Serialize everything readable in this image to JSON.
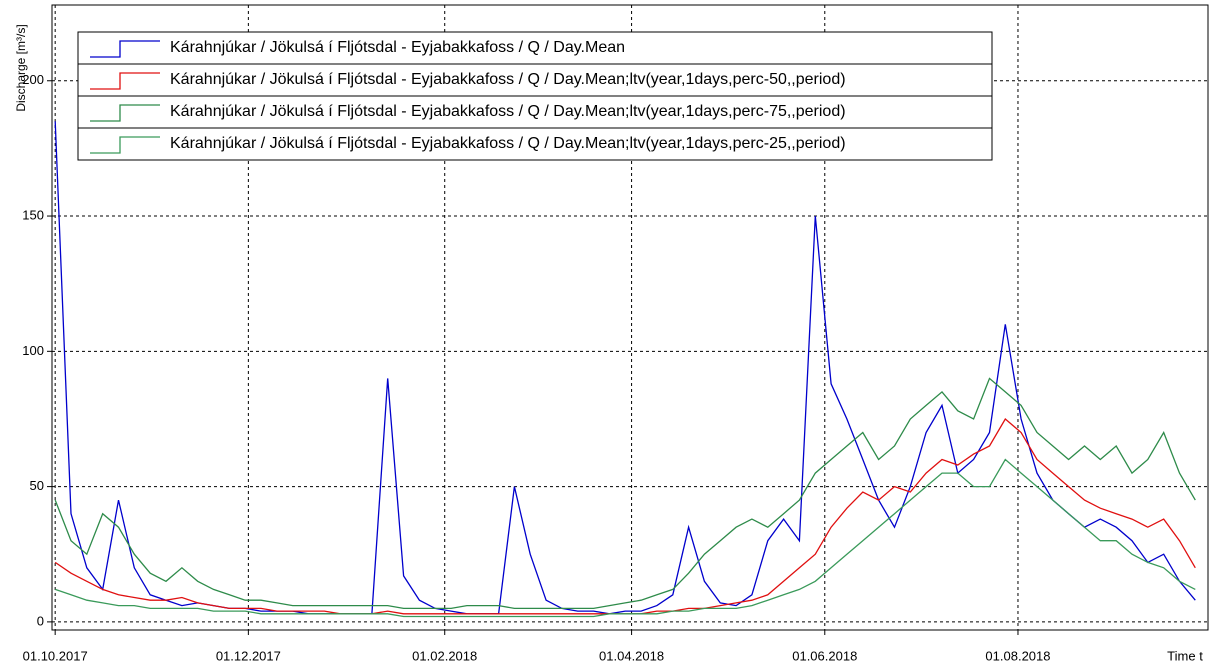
{
  "chart_data": {
    "type": "line",
    "xlabel": "Time t",
    "ylabel": "Discharge [m³/s]",
    "x": [
      "2017-10-01",
      "2017-10-06",
      "2017-10-11",
      "2017-10-16",
      "2017-10-21",
      "2017-10-26",
      "2017-10-31",
      "2017-11-05",
      "2017-11-10",
      "2017-11-15",
      "2017-11-20",
      "2017-11-25",
      "2017-11-30",
      "2017-12-05",
      "2017-12-10",
      "2017-12-15",
      "2017-12-20",
      "2017-12-25",
      "2017-12-30",
      "2018-01-04",
      "2018-01-09",
      "2018-01-14",
      "2018-01-19",
      "2018-01-24",
      "2018-01-29",
      "2018-02-03",
      "2018-02-08",
      "2018-02-13",
      "2018-02-18",
      "2018-02-23",
      "2018-02-28",
      "2018-03-05",
      "2018-03-10",
      "2018-03-15",
      "2018-03-20",
      "2018-03-25",
      "2018-03-30",
      "2018-04-04",
      "2018-04-09",
      "2018-04-14",
      "2018-04-19",
      "2018-04-24",
      "2018-04-29",
      "2018-05-04",
      "2018-05-09",
      "2018-05-14",
      "2018-05-19",
      "2018-05-24",
      "2018-05-29",
      "2018-06-03",
      "2018-06-08",
      "2018-06-13",
      "2018-06-18",
      "2018-06-23",
      "2018-06-28",
      "2018-07-03",
      "2018-07-08",
      "2018-07-13",
      "2018-07-18",
      "2018-07-23",
      "2018-07-28",
      "2018-08-02",
      "2018-08-07",
      "2018-08-12",
      "2018-08-17",
      "2018-08-22",
      "2018-08-27",
      "2018-09-01",
      "2018-09-06",
      "2018-09-11",
      "2018-09-16",
      "2018-09-21",
      "2018-09-26"
    ],
    "series": [
      {
        "name": "Kárahnjúkar / Jökulsá í Fljótsdal - Eyjabakkafoss / Q / Day.Mean",
        "color": "#0000cc",
        "values": [
          185,
          40,
          20,
          12,
          45,
          20,
          10,
          8,
          6,
          7,
          6,
          5,
          5,
          4,
          4,
          4,
          3,
          3,
          3,
          3,
          3,
          90,
          17,
          8,
          5,
          4,
          3,
          3,
          3,
          50,
          25,
          8,
          5,
          4,
          4,
          3,
          4,
          4,
          6,
          10,
          35,
          15,
          7,
          6,
          10,
          30,
          38,
          30,
          150,
          88,
          75,
          60,
          45,
          35,
          50,
          70,
          80,
          55,
          60,
          70,
          110,
          75,
          55,
          45,
          40,
          35,
          38,
          35,
          30,
          22,
          25,
          15,
          8
        ]
      },
      {
        "name": "Kárahnjúkar / Jökulsá í Fljótsdal - Eyjabakkafoss / Q / Day.Mean;ltv(year,1days,perc-50,,period)",
        "color": "#e01010",
        "values": [
          22,
          18,
          15,
          12,
          10,
          9,
          8,
          8,
          9,
          7,
          6,
          5,
          5,
          5,
          4,
          4,
          4,
          4,
          3,
          3,
          3,
          4,
          3,
          3,
          3,
          3,
          3,
          3,
          3,
          3,
          3,
          3,
          3,
          3,
          3,
          3,
          3,
          3,
          4,
          4,
          5,
          5,
          6,
          7,
          8,
          10,
          15,
          20,
          25,
          35,
          42,
          48,
          45,
          50,
          48,
          55,
          60,
          58,
          62,
          65,
          75,
          70,
          60,
          55,
          50,
          45,
          42,
          40,
          38,
          35,
          38,
          30,
          20
        ]
      },
      {
        "name": "Kárahnjúkar / Jökulsá í Fljótsdal - Eyjabakkafoss / Q / Day.Mean;ltv(year,1days,perc-75,,period)",
        "color": "#2e8b4a",
        "values": [
          45,
          30,
          25,
          40,
          35,
          25,
          18,
          15,
          20,
          15,
          12,
          10,
          8,
          8,
          7,
          6,
          6,
          6,
          6,
          6,
          6,
          6,
          5,
          5,
          5,
          5,
          6,
          6,
          6,
          5,
          5,
          5,
          5,
          5,
          5,
          6,
          7,
          8,
          10,
          12,
          18,
          25,
          30,
          35,
          38,
          35,
          40,
          45,
          55,
          60,
          65,
          70,
          60,
          65,
          75,
          80,
          85,
          78,
          75,
          90,
          85,
          80,
          70,
          65,
          60,
          65,
          60,
          65,
          55,
          60,
          70,
          55,
          45
        ]
      },
      {
        "name": "Kárahnjúkar / Jökulsá í Fljótsdal - Eyjabakkafoss / Q / Day.Mean;ltv(year,1days,perc-25,,period)",
        "color": "#3a9a5a",
        "values": [
          12,
          10,
          8,
          7,
          6,
          6,
          5,
          5,
          5,
          5,
          4,
          4,
          4,
          3,
          3,
          3,
          3,
          3,
          3,
          3,
          3,
          3,
          2,
          2,
          2,
          2,
          2,
          2,
          2,
          2,
          2,
          2,
          2,
          2,
          2,
          3,
          3,
          3,
          3,
          4,
          4,
          5,
          5,
          5,
          6,
          8,
          10,
          12,
          15,
          20,
          25,
          30,
          35,
          40,
          45,
          50,
          55,
          55,
          50,
          50,
          60,
          55,
          50,
          45,
          40,
          35,
          30,
          30,
          25,
          22,
          20,
          15,
          12
        ]
      }
    ],
    "xlim": [
      "2017-09-30",
      "2018-09-30"
    ],
    "xticks": [
      {
        "value": "2017-10-01",
        "label": "01.10.2017"
      },
      {
        "value": "2017-12-01",
        "label": "01.12.2017"
      },
      {
        "value": "2018-02-01",
        "label": "01.02.2018"
      },
      {
        "value": "2018-04-01",
        "label": "01.04.2018"
      },
      {
        "value": "2018-06-01",
        "label": "01.06.2018"
      },
      {
        "value": "2018-08-01",
        "label": "01.08.2018"
      }
    ],
    "ylim": [
      -3,
      228
    ],
    "yticks": [
      0,
      50,
      100,
      150,
      200
    ],
    "grid": true
  }
}
